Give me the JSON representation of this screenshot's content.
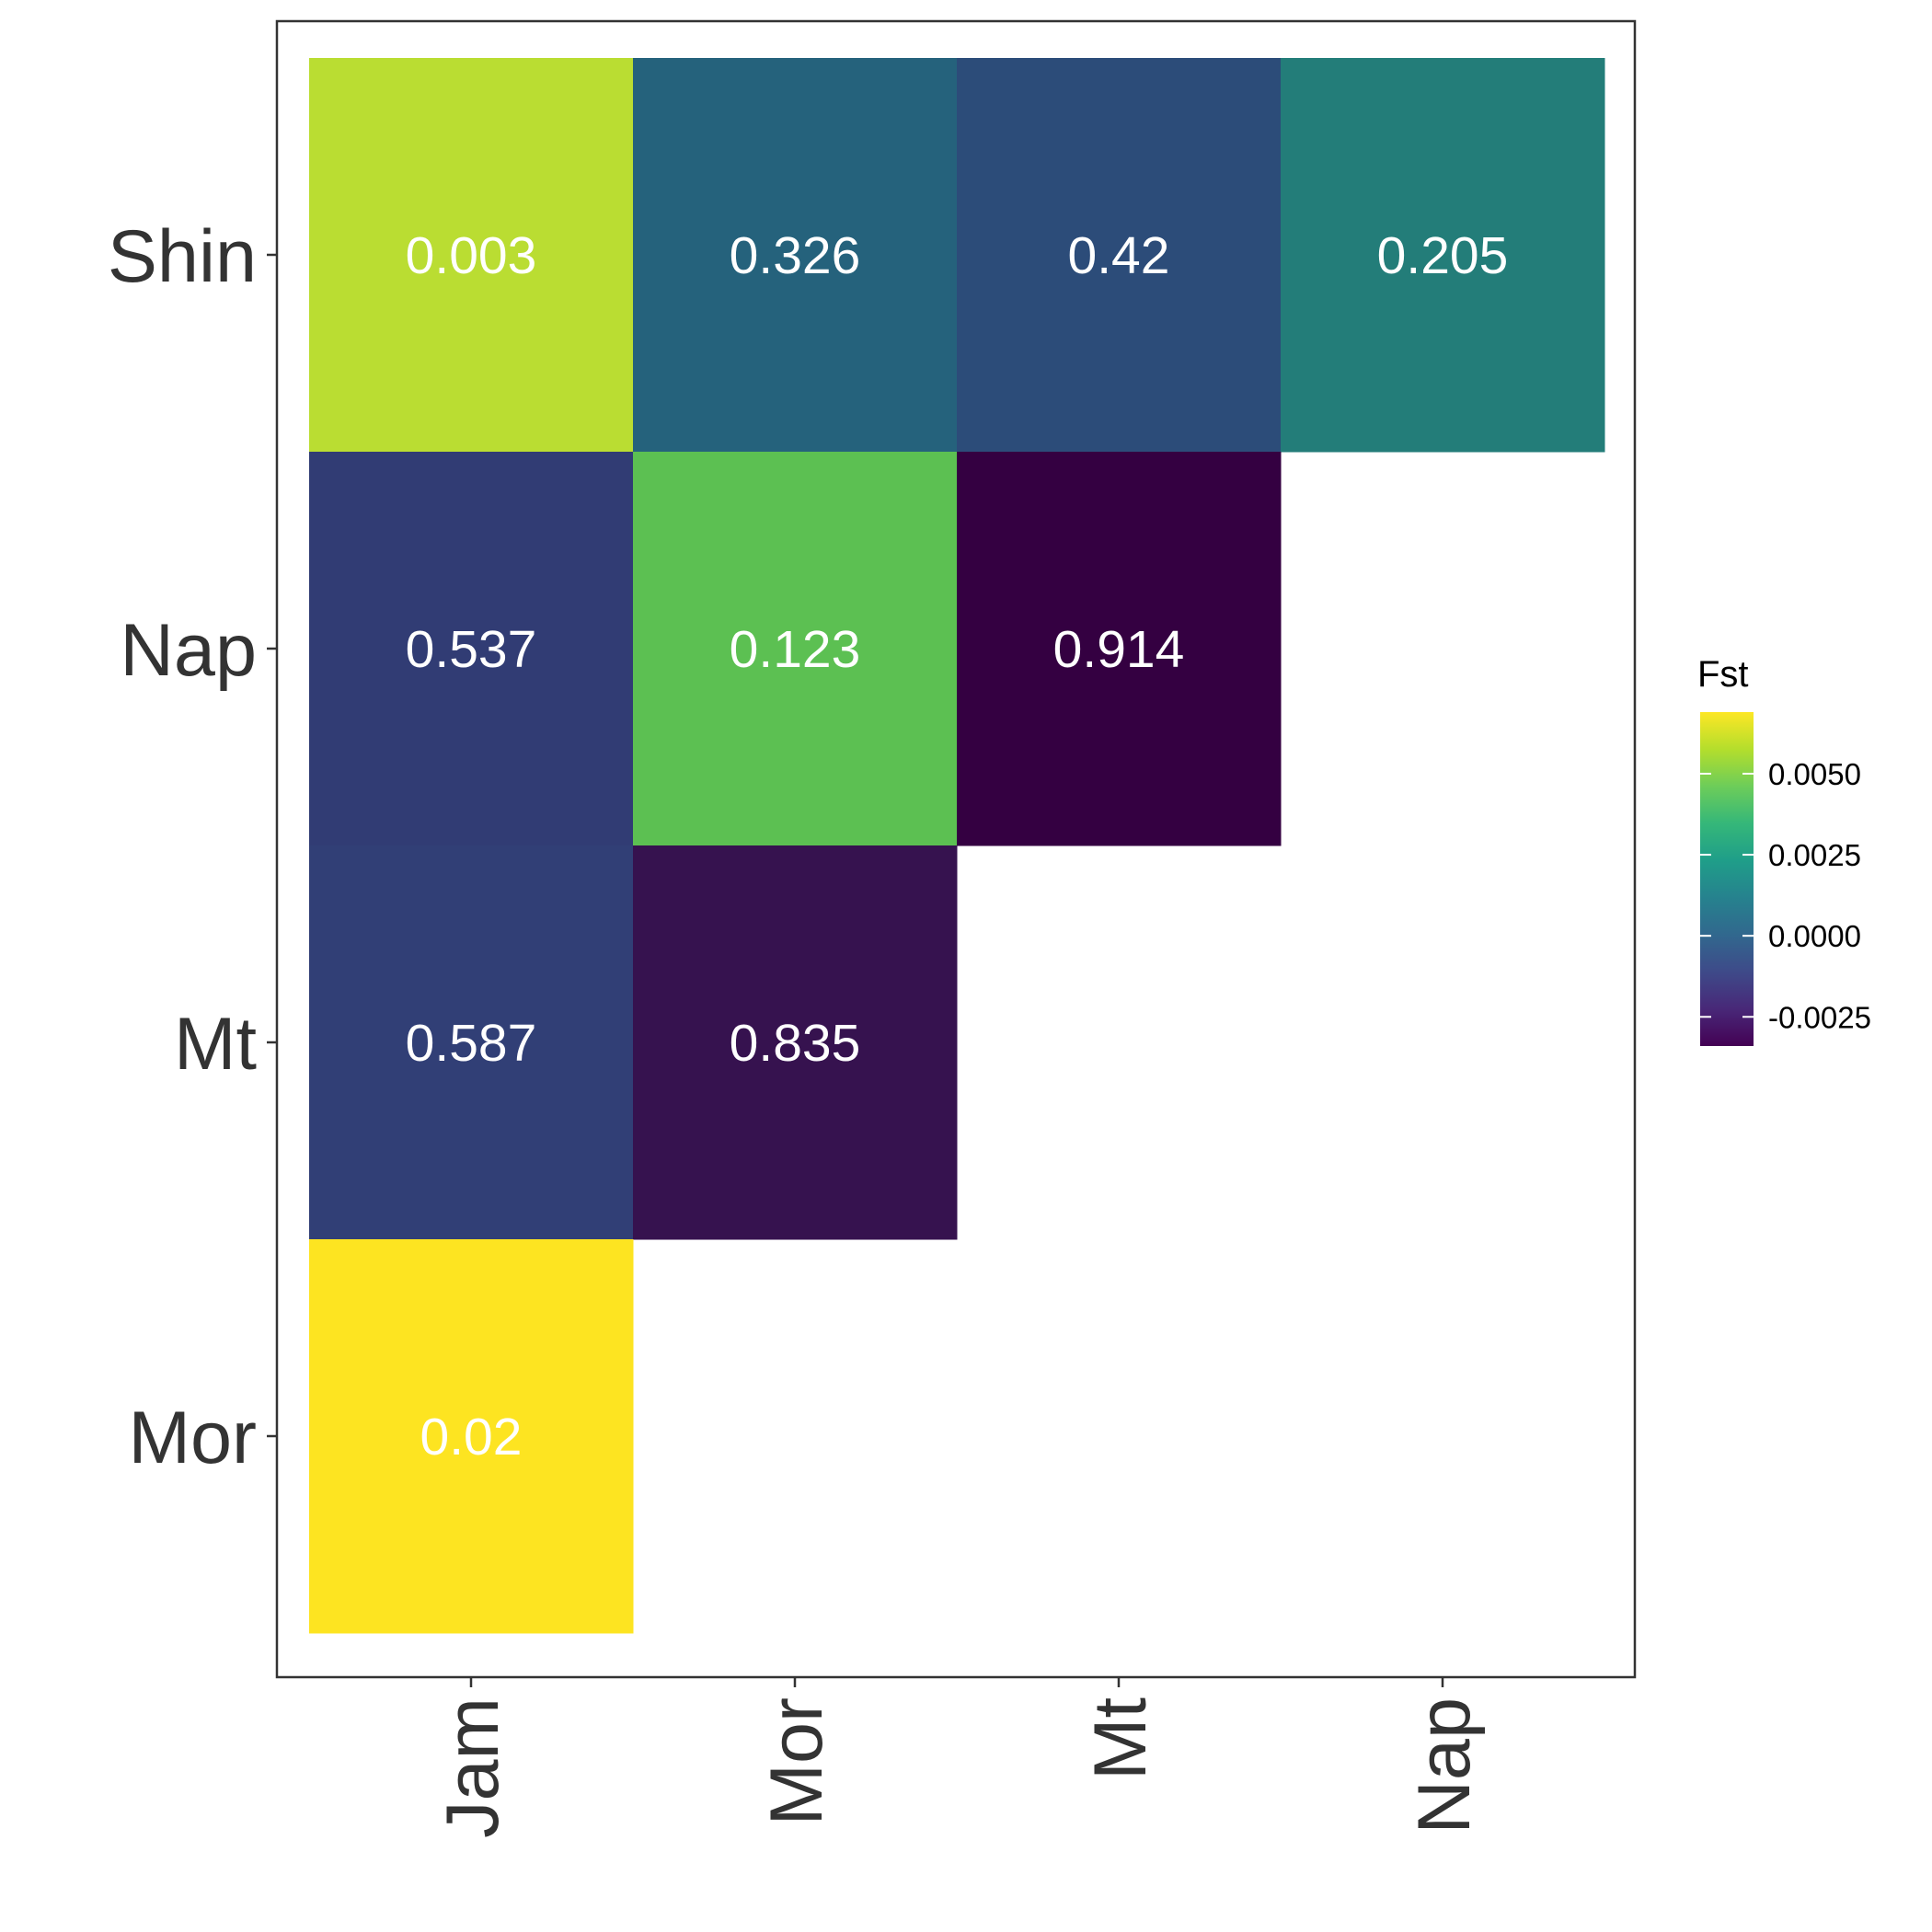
{
  "colors": {
    "background": "#ffffff",
    "axis": "#333333",
    "panel_border": "#333333",
    "cell_label": "#ffffff",
    "viridis": [
      "#440154",
      "#482878",
      "#3E4A89",
      "#31688E",
      "#26828E",
      "#1F9E89",
      "#35B779",
      "#6DCD59",
      "#B4DE2C",
      "#FDE725"
    ]
  },
  "chart_data": {
    "type": "heatmap",
    "title": "",
    "xlabel": "",
    "ylabel": "",
    "x_categories": [
      "Jam",
      "Mor",
      "Mt",
      "Nap"
    ],
    "y_categories": [
      "Mor",
      "Mt",
      "Nap",
      "Shin"
    ],
    "cells": [
      {
        "x": "Jam",
        "y": "Shin",
        "fst": 0.0058,
        "label": "0.003",
        "color": "#BADD32"
      },
      {
        "x": "Mor",
        "y": "Shin",
        "fst": 0.0004,
        "label": "0.326",
        "color": "#25627C"
      },
      {
        "x": "Mt",
        "y": "Shin",
        "fst": -0.0004,
        "label": "0.42",
        "color": "#2C4C79"
      },
      {
        "x": "Nap",
        "y": "Shin",
        "fst": 0.002,
        "label": "0.205",
        "color": "#237D79"
      },
      {
        "x": "Jam",
        "y": "Nap",
        "fst": -0.001,
        "label": "0.537",
        "color": "#313C74"
      },
      {
        "x": "Mor",
        "y": "Nap",
        "fst": 0.0051,
        "label": "0.123",
        "color": "#5CC052"
      },
      {
        "x": "Mt",
        "y": "Nap",
        "fst": -0.0034,
        "label": "0.914",
        "color": "#340041"
      },
      {
        "x": "Jam",
        "y": "Mt",
        "fst": -0.0009,
        "label": "0.587",
        "color": "#313F76"
      },
      {
        "x": "Mor",
        "y": "Mt",
        "fst": -0.003,
        "label": "0.835",
        "color": "#36124F"
      },
      {
        "x": "Jam",
        "y": "Mor",
        "fst": 0.0069,
        "label": "0.02",
        "color": "#FDE421"
      }
    ],
    "legend": {
      "title": "Fst",
      "position": "right",
      "range": [
        -0.0034,
        0.0069
      ],
      "ticks": [
        -0.0025,
        0.0,
        0.0025,
        0.005
      ],
      "tick_labels": [
        "-0.0025",
        "0.0000",
        "0.0025",
        "0.0050"
      ]
    }
  }
}
